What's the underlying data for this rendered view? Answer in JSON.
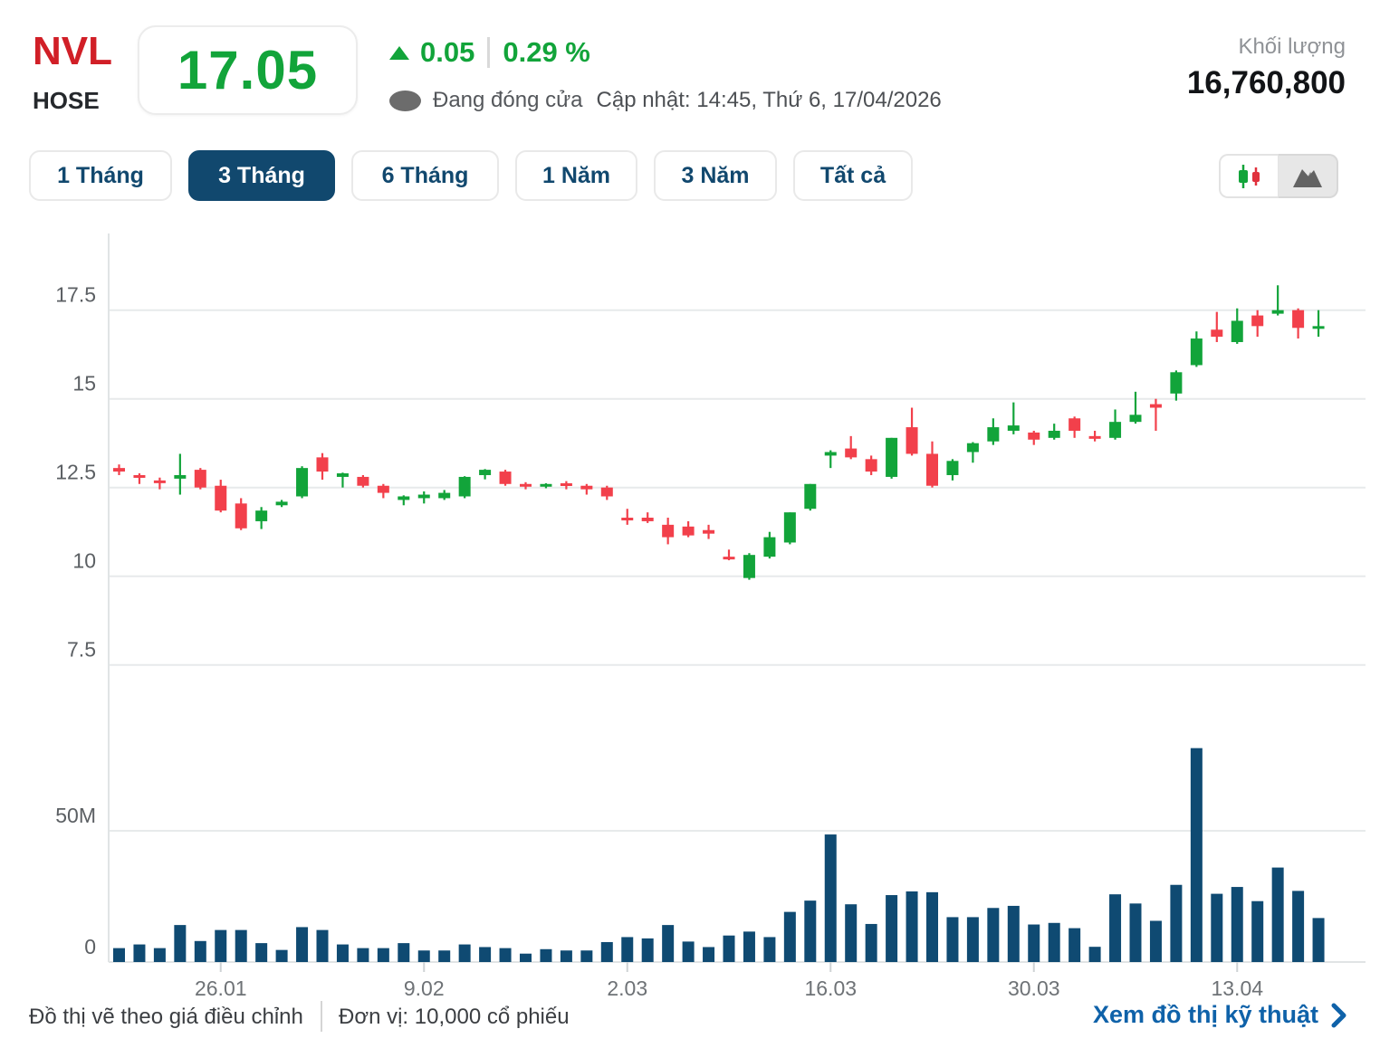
{
  "header": {
    "symbol": "NVL",
    "exchange": "HOSE",
    "price": "17.05",
    "change_value": "0.05",
    "change_percent": "0.29 %",
    "status_label": "Đang đóng cửa",
    "update_label": "Cập nhật: 14:45, Thứ 6, 17/04/2026",
    "volume_label": "Khối lượng",
    "volume_value": "16,760,800"
  },
  "tabs": {
    "items": [
      {
        "label": "1 Tháng",
        "active": false
      },
      {
        "label": "3 Tháng",
        "active": true
      },
      {
        "label": "6 Tháng",
        "active": false
      },
      {
        "label": "1 Năm",
        "active": false
      },
      {
        "label": "3 Năm",
        "active": false
      },
      {
        "label": "Tất cả",
        "active": false
      }
    ]
  },
  "toggles": {
    "candlestick_icon": "candlestick-chart-icon",
    "area_icon": "area-chart-icon"
  },
  "icons": {
    "up_arrow": "triangle-up-icon",
    "status_dot": "dot-icon",
    "chevron": "chevron-right-icon"
  },
  "colors": {
    "up_green": "#12a43a",
    "down_red": "#f2404b",
    "navy": "#11486e",
    "volume_bar": "#0f4a72",
    "link_blue": "#0f62a9",
    "symbol_red": "#d11f27",
    "grid_gray": "#e7eaeb"
  },
  "footer": {
    "note_adjusted": "Đồ thị vẽ theo giá điều chỉnh",
    "note_unit": "Đơn vị: 10,000 cổ phiếu",
    "link_label": "Xem đồ thị kỹ thuật"
  },
  "chart_data": {
    "type": "candlestick_with_volume",
    "title": "NVL 3-month daily price chart",
    "price_axis": {
      "range": [
        7.2,
        18.6
      ],
      "ticks": [
        {
          "label": "17.5",
          "value": 17.5
        },
        {
          "label": "15",
          "value": 15
        },
        {
          "label": "12.5",
          "value": 12.5
        },
        {
          "label": "10",
          "value": 10
        },
        {
          "label": "7.5",
          "value": 7.5
        }
      ]
    },
    "volume_axis": {
      "range_m": [
        0,
        100
      ],
      "ticks": [
        {
          "label": "50M",
          "value": 50
        },
        {
          "label": "0",
          "value": 0
        }
      ]
    },
    "x_axis": {
      "ticks": [
        {
          "label": "26.01",
          "index": 5
        },
        {
          "label": "9.02",
          "index": 15
        },
        {
          "label": "2.03",
          "index": 25
        },
        {
          "label": "16.03",
          "index": 35
        },
        {
          "label": "30.03",
          "index": 45
        },
        {
          "label": "13.04",
          "index": 55
        }
      ]
    },
    "ohlc": [
      [
        13.05,
        13.15,
        12.85,
        12.95
      ],
      [
        12.85,
        12.9,
        12.6,
        12.8
      ],
      [
        12.7,
        12.78,
        12.45,
        12.65
      ],
      [
        12.75,
        13.45,
        12.3,
        12.85
      ],
      [
        13.0,
        13.05,
        12.45,
        12.5
      ],
      [
        12.55,
        12.72,
        11.8,
        11.85
      ],
      [
        12.05,
        12.2,
        11.3,
        11.35
      ],
      [
        11.55,
        11.95,
        11.33,
        11.85
      ],
      [
        12.0,
        12.15,
        11.95,
        12.1
      ],
      [
        12.25,
        13.1,
        12.2,
        13.05
      ],
      [
        13.35,
        13.47,
        12.72,
        12.95
      ],
      [
        12.8,
        12.92,
        12.5,
        12.9
      ],
      [
        12.8,
        12.85,
        12.5,
        12.55
      ],
      [
        12.55,
        12.6,
        12.2,
        12.35
      ],
      [
        12.15,
        12.28,
        12.0,
        12.25
      ],
      [
        12.2,
        12.39,
        12.05,
        12.3
      ],
      [
        12.2,
        12.43,
        12.15,
        12.35
      ],
      [
        12.25,
        12.82,
        12.2,
        12.8
      ],
      [
        12.85,
        13.02,
        12.73,
        13.0
      ],
      [
        12.95,
        13.0,
        12.55,
        12.6
      ],
      [
        12.6,
        12.65,
        12.45,
        12.55
      ],
      [
        12.55,
        12.62,
        12.48,
        12.6
      ],
      [
        12.62,
        12.68,
        12.45,
        12.55
      ],
      [
        12.55,
        12.6,
        12.3,
        12.45
      ],
      [
        12.5,
        12.55,
        12.15,
        12.25
      ],
      [
        11.65,
        11.9,
        11.45,
        11.58
      ],
      [
        11.65,
        11.8,
        11.5,
        11.55
      ],
      [
        11.45,
        11.65,
        10.9,
        11.1
      ],
      [
        11.4,
        11.55,
        11.1,
        11.15
      ],
      [
        11.3,
        11.45,
        11.05,
        11.2
      ],
      [
        10.55,
        10.75,
        10.45,
        10.5
      ],
      [
        9.95,
        10.65,
        9.9,
        10.6
      ],
      [
        10.55,
        11.25,
        10.5,
        11.1
      ],
      [
        10.95,
        11.8,
        10.9,
        11.8
      ],
      [
        11.9,
        12.6,
        11.85,
        12.6
      ],
      [
        13.4,
        13.55,
        13.05,
        13.5
      ],
      [
        13.6,
        13.95,
        13.3,
        13.35
      ],
      [
        13.3,
        13.4,
        12.85,
        12.95
      ],
      [
        12.8,
        13.9,
        12.75,
        13.9
      ],
      [
        14.2,
        14.75,
        13.4,
        13.45
      ],
      [
        13.45,
        13.8,
        12.5,
        12.55
      ],
      [
        12.85,
        13.3,
        12.7,
        13.25
      ],
      [
        13.5,
        13.78,
        13.2,
        13.75
      ],
      [
        13.8,
        14.45,
        13.7,
        14.2
      ],
      [
        14.1,
        14.9,
        14.0,
        14.25
      ],
      [
        14.05,
        14.1,
        13.7,
        13.85
      ],
      [
        13.9,
        14.3,
        13.85,
        14.1
      ],
      [
        14.45,
        14.5,
        13.9,
        14.1
      ],
      [
        13.95,
        14.1,
        13.8,
        13.9
      ],
      [
        13.9,
        14.7,
        13.85,
        14.35
      ],
      [
        14.35,
        15.2,
        14.3,
        14.55
      ],
      [
        14.85,
        15.0,
        14.1,
        14.75
      ],
      [
        15.15,
        15.8,
        14.95,
        15.75
      ],
      [
        15.95,
        16.9,
        15.9,
        16.7
      ],
      [
        16.95,
        17.45,
        16.6,
        16.75
      ],
      [
        16.6,
        17.55,
        16.55,
        17.2
      ],
      [
        17.35,
        17.5,
        16.75,
        17.05
      ],
      [
        17.4,
        18.2,
        17.35,
        17.5
      ],
      [
        17.5,
        17.55,
        16.7,
        17.0
      ],
      [
        17.0,
        17.5,
        16.75,
        17.05
      ]
    ],
    "volumes_m": [
      5.3,
      6.7,
      5.3,
      14.1,
      8.0,
      12.2,
      12.2,
      7.2,
      4.6,
      13.3,
      12.2,
      6.7,
      5.3,
      5.3,
      7.2,
      4.4,
      4.4,
      6.7,
      5.7,
      5.3,
      3.2,
      4.9,
      4.4,
      4.4,
      7.6,
      9.5,
      9.0,
      14.1,
      7.8,
      5.7,
      10.1,
      11.6,
      9.5,
      19.1,
      23.4,
      48.6,
      22.0,
      14.5,
      25.5,
      26.9,
      26.6,
      17.1,
      17.1,
      20.6,
      21.4,
      14.3,
      14.9,
      12.9,
      5.8,
      25.8,
      22.3,
      15.7,
      29.4,
      81.5,
      26.0,
      28.6,
      23.2,
      36.0,
      27.1,
      16.76
    ],
    "legend_position": "none",
    "grid": true
  }
}
